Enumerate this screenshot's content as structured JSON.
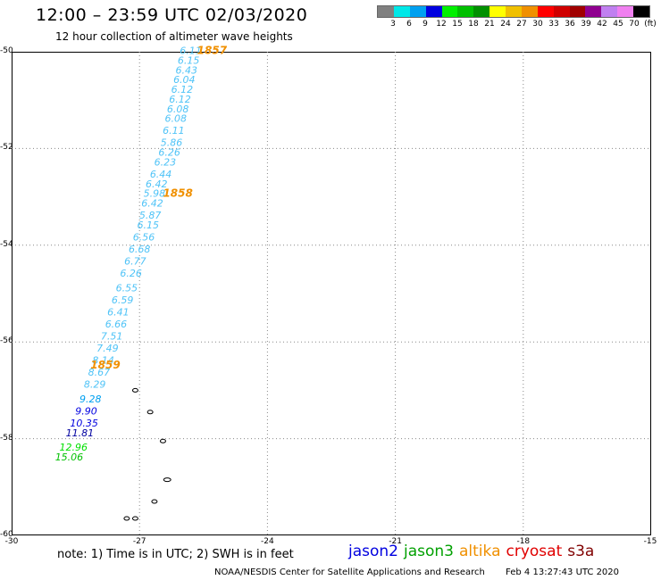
{
  "header": {
    "title": "12:00 – 23:59 UTC 02/03/2020",
    "subtitle": "12 hour collection of altimeter wave heights"
  },
  "colorbar": {
    "colors": [
      "#808080",
      "#00e8e8",
      "#00a0f0",
      "#0000e0",
      "#00f000",
      "#00c000",
      "#009000",
      "#ffff00",
      "#f0c000",
      "#f09000",
      "#ff0000",
      "#d00000",
      "#a00000",
      "#900090",
      "#c080f0",
      "#f080f0",
      "#000000"
    ],
    "ticks": [
      "3",
      "6",
      "9",
      "12",
      "15",
      "18",
      "21",
      "24",
      "27",
      "30",
      "33",
      "36",
      "39",
      "42",
      "45",
      "70",
      "(ft)"
    ]
  },
  "map": {
    "lat_labels": [
      "-50",
      "-52",
      "-54",
      "-56",
      "-58",
      "-60"
    ],
    "lon_labels": [
      "-30",
      "-27",
      "-24",
      "-21",
      "-18",
      "-15"
    ],
    "lat_range": [
      -60,
      -50
    ],
    "lon_range": [
      -30,
      -15
    ],
    "track": [
      {
        "lon": -25.8,
        "lat": -50.05,
        "v": "6.11",
        "c": "#4fc3f7"
      },
      {
        "lon": -25.85,
        "lat": -50.25,
        "v": "6.15",
        "c": "#4fc3f7"
      },
      {
        "lon": -25.9,
        "lat": -50.45,
        "v": "6.43",
        "c": "#4fc3f7"
      },
      {
        "lon": -25.95,
        "lat": -50.65,
        "v": "6.04",
        "c": "#4fc3f7"
      },
      {
        "lon": -26.0,
        "lat": -50.85,
        "v": "6.12",
        "c": "#4fc3f7"
      },
      {
        "lon": -26.05,
        "lat": -51.05,
        "v": "6.12",
        "c": "#4fc3f7"
      },
      {
        "lon": -26.1,
        "lat": -51.25,
        "v": "6.08",
        "c": "#4fc3f7"
      },
      {
        "lon": -26.15,
        "lat": -51.45,
        "v": "6.08",
        "c": "#4fc3f7"
      },
      {
        "lon": -26.2,
        "lat": -51.7,
        "v": "6.11",
        "c": "#4fc3f7"
      },
      {
        "lon": -26.25,
        "lat": -51.95,
        "v": "5.86",
        "c": "#4fc3f7"
      },
      {
        "lon": -26.3,
        "lat": -52.15,
        "v": "6.26",
        "c": "#4fc3f7"
      },
      {
        "lon": -26.4,
        "lat": -52.35,
        "v": "6.23",
        "c": "#4fc3f7"
      },
      {
        "lon": -26.5,
        "lat": -52.6,
        "v": "6.44",
        "c": "#4fc3f7"
      },
      {
        "lon": -26.6,
        "lat": -52.8,
        "v": "6.42",
        "c": "#4fc3f7"
      },
      {
        "lon": -26.65,
        "lat": -53.0,
        "v": "5.98",
        "c": "#4fc3f7"
      },
      {
        "lon": -26.7,
        "lat": -53.2,
        "v": "6.42",
        "c": "#4fc3f7"
      },
      {
        "lon": -26.75,
        "lat": -53.45,
        "v": "5.87",
        "c": "#4fc3f7"
      },
      {
        "lon": -26.8,
        "lat": -53.65,
        "v": "6.15",
        "c": "#4fc3f7"
      },
      {
        "lon": -26.9,
        "lat": -53.9,
        "v": "6.56",
        "c": "#4fc3f7"
      },
      {
        "lon": -27.0,
        "lat": -54.15,
        "v": "6.68",
        "c": "#4fc3f7"
      },
      {
        "lon": -27.1,
        "lat": -54.4,
        "v": "6.77",
        "c": "#4fc3f7"
      },
      {
        "lon": -27.2,
        "lat": -54.65,
        "v": "6.26",
        "c": "#4fc3f7"
      },
      {
        "lon": -27.3,
        "lat": -54.95,
        "v": "6.55",
        "c": "#4fc3f7"
      },
      {
        "lon": -27.4,
        "lat": -55.2,
        "v": "6.59",
        "c": "#4fc3f7"
      },
      {
        "lon": -27.5,
        "lat": -55.45,
        "v": "6.41",
        "c": "#4fc3f7"
      },
      {
        "lon": -27.55,
        "lat": -55.7,
        "v": "6.66",
        "c": "#4fc3f7"
      },
      {
        "lon": -27.65,
        "lat": -55.95,
        "v": "7.51",
        "c": "#4fc3f7"
      },
      {
        "lon": -27.75,
        "lat": -56.2,
        "v": "7.49",
        "c": "#4fc3f7"
      },
      {
        "lon": -27.85,
        "lat": -56.45,
        "v": "8.14",
        "c": "#4fc3f7"
      },
      {
        "lon": -27.95,
        "lat": -56.7,
        "v": "8.67",
        "c": "#4fc3f7"
      },
      {
        "lon": -28.05,
        "lat": -56.95,
        "v": "8.29",
        "c": "#4fc3f7"
      },
      {
        "lon": -28.15,
        "lat": -57.25,
        "v": "9.28",
        "c": "#00a0f0"
      },
      {
        "lon": -28.25,
        "lat": -57.5,
        "v": "9.90",
        "c": "#0000e0"
      },
      {
        "lon": -28.3,
        "lat": -57.75,
        "v": "10.35",
        "c": "#0000e0"
      },
      {
        "lon": -28.4,
        "lat": -57.95,
        "v": "11.81",
        "c": "#0000a0"
      },
      {
        "lon": -28.55,
        "lat": -58.25,
        "v": "12.96",
        "c": "#00e000"
      },
      {
        "lon": -28.65,
        "lat": -58.45,
        "v": "15.06",
        "c": "#00c000"
      }
    ],
    "time_labels": [
      {
        "lon": -25.3,
        "lat": -50.05,
        "v": "1857",
        "c": "#f09000"
      },
      {
        "lon": -26.1,
        "lat": -53.0,
        "v": "1858",
        "c": "#f09000"
      },
      {
        "lon": -27.8,
        "lat": -56.55,
        "v": "1859",
        "c": "#f09000"
      }
    ],
    "islands": [
      {
        "lon": -27.1,
        "lat": -57.0
      },
      {
        "lon": -26.75,
        "lat": -57.45
      },
      {
        "lon": -26.45,
        "lat": -58.05
      },
      {
        "lon": -26.35,
        "lat": -58.85
      },
      {
        "lon": -26.65,
        "lat": -59.3
      },
      {
        "lon": -27.3,
        "lat": -59.65
      },
      {
        "lon": -27.1,
        "lat": -59.65
      }
    ]
  },
  "note": "note: 1) Time is in UTC; 2) SWH is in feet",
  "legend": [
    {
      "name": "jason2",
      "color": "#0000e0"
    },
    {
      "name": "jason3",
      "color": "#00a000"
    },
    {
      "name": "altika",
      "color": "#f09000"
    },
    {
      "name": "cryosat",
      "color": "#e00000"
    },
    {
      "name": "s3a",
      "color": "#800000"
    }
  ],
  "footer": {
    "org": "NOAA/NESDIS Center for Satellite Applications and Research",
    "timestamp": "Feb  4 13:27:43 UTC 2020"
  }
}
